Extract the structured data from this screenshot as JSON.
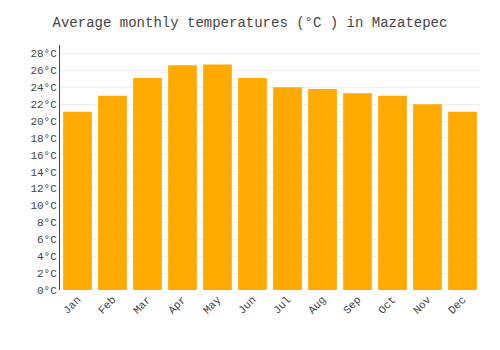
{
  "chart_data": {
    "type": "bar",
    "title": "Average monthly temperatures (°C ) in Mazatepec",
    "categories": [
      "Jan",
      "Feb",
      "Mar",
      "Apr",
      "May",
      "Jun",
      "Jul",
      "Aug",
      "Sep",
      "Oct",
      "Nov",
      "Dec"
    ],
    "values": [
      21.1,
      23.0,
      25.1,
      26.6,
      26.7,
      25.1,
      24.0,
      23.8,
      23.3,
      23.0,
      22.0,
      21.1
    ],
    "color": "#FFAA00",
    "ylim": [
      0,
      29
    ],
    "yticks": [
      {
        "value": 0,
        "label": "0°C"
      },
      {
        "value": 2,
        "label": "2°C"
      },
      {
        "value": 4,
        "label": "4°C"
      },
      {
        "value": 6,
        "label": "6°C"
      },
      {
        "value": 8,
        "label": "8°C"
      },
      {
        "value": 10,
        "label": "10°C"
      },
      {
        "value": 12,
        "label": "12°C"
      },
      {
        "value": 14,
        "label": "14°C"
      },
      {
        "value": 16,
        "label": "16°C"
      },
      {
        "value": 18,
        "label": "18°C"
      },
      {
        "value": 20,
        "label": "20°C"
      },
      {
        "value": 22,
        "label": "22°C"
      },
      {
        "value": 24,
        "label": "24°C"
      },
      {
        "value": 26,
        "label": "26°C"
      },
      {
        "value": 28,
        "label": "28°C"
      }
    ],
    "grid": true
  }
}
